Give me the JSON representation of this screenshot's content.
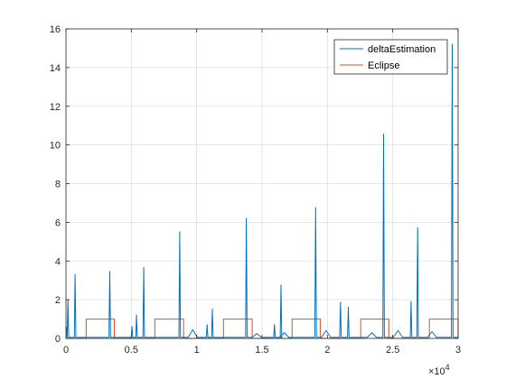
{
  "chart_data": {
    "type": "line",
    "xlim": [
      0,
      30000
    ],
    "ylim": [
      0,
      16
    ],
    "x_ticks": [
      0,
      5000,
      10000,
      15000,
      20000,
      25000,
      30000
    ],
    "x_tick_labels": [
      "0",
      "0.5",
      "1",
      "1.5",
      "2",
      "2.5",
      "3"
    ],
    "x_exponent_label": "×10",
    "x_exponent_power": "4",
    "y_ticks": [
      0,
      2,
      4,
      6,
      8,
      10,
      12,
      14,
      16
    ],
    "y_tick_labels": [
      "0",
      "2",
      "4",
      "6",
      "8",
      "10",
      "12",
      "14",
      "16"
    ],
    "grid": true,
    "legend_position": "top-right",
    "series": [
      {
        "name": "deltaEstimation",
        "color": "#0072BD",
        "baseline": 0.05,
        "bumps": [
          {
            "x": 9700,
            "y": 0.45
          },
          {
            "x": 14600,
            "y": 0.25
          },
          {
            "x": 16700,
            "y": 0.3
          },
          {
            "x": 19900,
            "y": 0.4
          },
          {
            "x": 23400,
            "y": 0.3
          },
          {
            "x": 25400,
            "y": 0.4
          },
          {
            "x": 28000,
            "y": 0.35
          }
        ],
        "spikes": [
          {
            "x": 150,
            "y": 2.0
          },
          {
            "x": 700,
            "y": 3.3
          },
          {
            "x": 3350,
            "y": 3.45
          },
          {
            "x": 5050,
            "y": 0.6
          },
          {
            "x": 5400,
            "y": 1.2
          },
          {
            "x": 5950,
            "y": 3.65
          },
          {
            "x": 8700,
            "y": 5.5
          },
          {
            "x": 10800,
            "y": 0.7
          },
          {
            "x": 11200,
            "y": 1.5
          },
          {
            "x": 13800,
            "y": 6.2
          },
          {
            "x": 15950,
            "y": 0.7
          },
          {
            "x": 16450,
            "y": 2.75
          },
          {
            "x": 19100,
            "y": 6.75
          },
          {
            "x": 21000,
            "y": 1.85
          },
          {
            "x": 21600,
            "y": 1.6
          },
          {
            "x": 24300,
            "y": 10.55
          },
          {
            "x": 26400,
            "y": 1.9
          },
          {
            "x": 26900,
            "y": 5.7
          },
          {
            "x": 29550,
            "y": 15.2
          }
        ]
      },
      {
        "name": "Eclipse",
        "color": "#D95319",
        "low": 0,
        "high": 1,
        "intervals": [
          [
            1550,
            3700
          ],
          [
            6800,
            9000
          ],
          [
            12050,
            14250
          ],
          [
            17300,
            19450
          ],
          [
            22550,
            24700
          ],
          [
            27800,
            30000
          ]
        ]
      }
    ]
  }
}
